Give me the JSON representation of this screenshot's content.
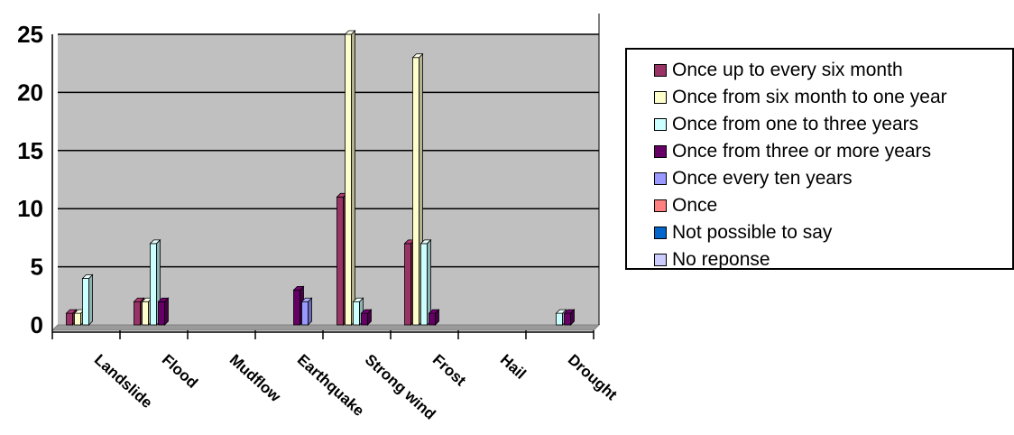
{
  "chart_data": {
    "type": "bar",
    "categories": [
      "Landslide",
      "Flood",
      "Mudflow",
      "Earthquake",
      "Strong wind",
      "Frost",
      "Hail",
      "Drought"
    ],
    "ylim": [
      0,
      25
    ],
    "yticks": [
      "0",
      "5",
      "10",
      "15",
      "20",
      "25"
    ],
    "grid": true,
    "legend_position": "right",
    "series": [
      {
        "name": "Once up to every six month",
        "color": "#993366",
        "values": [
          1,
          2,
          0,
          0,
          11,
          7,
          0,
          0
        ]
      },
      {
        "name": "Once from six month to one year",
        "color": "#FFFFCC",
        "values": [
          1,
          2,
          0,
          0,
          25,
          23,
          0,
          0
        ]
      },
      {
        "name": "Once from one to three years",
        "color": "#CCFFFF",
        "values": [
          4,
          7,
          0,
          0,
          2,
          7,
          0,
          1
        ]
      },
      {
        "name": "Once from three or more years",
        "color": "#660066",
        "values": [
          0,
          2,
          0,
          3,
          1,
          1,
          0,
          1
        ]
      },
      {
        "name": "Once every ten years",
        "color": "#9999FF",
        "values": [
          0,
          0,
          0,
          2,
          0,
          0,
          0,
          0
        ]
      },
      {
        "name": "Once",
        "color": "#FF8080",
        "values": [
          0,
          0,
          0,
          0,
          0,
          0,
          0,
          0
        ]
      },
      {
        "name": "Not possible to say",
        "color": "#0066CC",
        "values": [
          0,
          0,
          0,
          0,
          0,
          0,
          0,
          0
        ]
      },
      {
        "name": "No reponse",
        "color": "#CCCCFF",
        "values": [
          0,
          0,
          0,
          0,
          0,
          0,
          0,
          0
        ]
      }
    ]
  }
}
